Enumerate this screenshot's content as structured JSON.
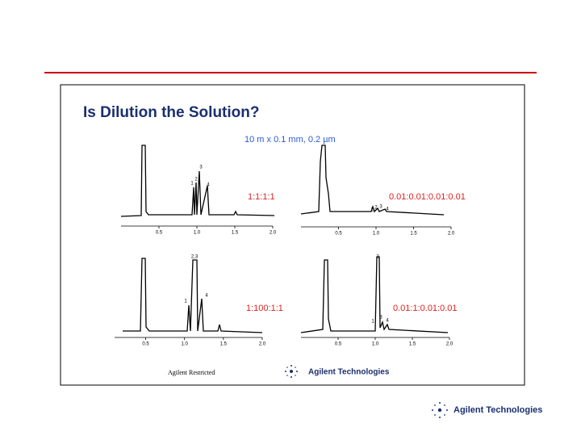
{
  "slide": {
    "title": "Is Dilution the Solution?",
    "subtitle": "10 m x 0.1 mm, 0.2 µm",
    "footer": "Agilent Restricted",
    "inner_logo": "Agilent Technologies",
    "logo": "Agilent Technologies"
  },
  "panels": [
    {
      "ratio": "1:1:1:1",
      "xlim": [
        0,
        2.0
      ],
      "xticks": [
        0.5,
        {
          "value": 1,
          "label": "1.0"
        },
        1.5,
        {
          "value": 2,
          "label": "2.0"
        }
      ],
      "peaks": [
        "3",
        "2",
        "1",
        "4"
      ]
    },
    {
      "ratio": "0.01:0.01:0.01:0.01",
      "xlim": [
        0,
        2.0
      ],
      "xticks": [
        0.5,
        {
          "value": 1,
          "label": "1.0"
        },
        1.5,
        {
          "value": 2,
          "label": "2.0"
        }
      ],
      "peaks": [
        "1",
        "2",
        "3",
        "4"
      ]
    },
    {
      "ratio": "1:100:1:1",
      "xlim": [
        0.1,
        2.0
      ],
      "xticks": [
        0.5,
        {
          "value": 1,
          "label": "1.0"
        },
        1.5,
        {
          "value": 2,
          "label": "2.0"
        }
      ],
      "peaks": [
        "2,3",
        "1",
        "4"
      ]
    },
    {
      "ratio": "0.01:1:0.01:0.01",
      "xlim": [
        0,
        2.0
      ],
      "xticks": [
        0.5,
        {
          "value": 1,
          "label": "1.0"
        },
        1.5,
        {
          "value": 2,
          "label": "2.0"
        }
      ],
      "peaks": [
        "2",
        "1",
        "3",
        "4"
      ]
    }
  ]
}
